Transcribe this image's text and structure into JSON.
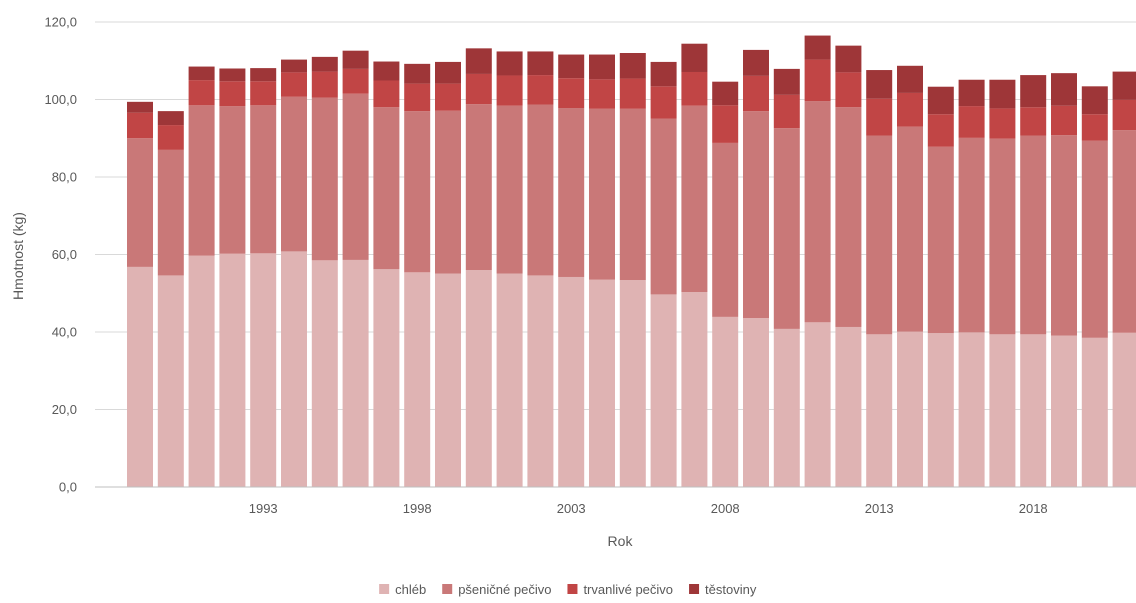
{
  "chart_data": {
    "type": "bar",
    "stacked": true,
    "xlabel": "Rok",
    "ylabel": "Hmotnost (kg)",
    "ylim": [
      0,
      120
    ],
    "yticks": [
      0,
      20,
      40,
      60,
      80,
      100,
      120
    ],
    "ytick_labels": [
      "0,0",
      "20,0",
      "40,0",
      "60,0",
      "80,0",
      "100,0",
      "120,0"
    ],
    "x": [
      1989,
      1990,
      1991,
      1992,
      1993,
      1994,
      1995,
      1996,
      1997,
      1998,
      1999,
      2000,
      2001,
      2002,
      2003,
      2004,
      2005,
      2006,
      2007,
      2008,
      2009,
      2010,
      2011,
      2012,
      2013,
      2014,
      2015,
      2016,
      2017,
      2018,
      2019,
      2020,
      2021
    ],
    "xtick_labels": [
      {
        "year": 1993,
        "label": "1993"
      },
      {
        "year": 1998,
        "label": "1998"
      },
      {
        "year": 2003,
        "label": "2003"
      },
      {
        "year": 2008,
        "label": "2008"
      },
      {
        "year": 2013,
        "label": "2013"
      },
      {
        "year": 2018,
        "label": "2018"
      }
    ],
    "grid": "horizontal",
    "legend_position": "bottom",
    "series": [
      {
        "name": "chléb",
        "color": "#dfb3b3",
        "values": [
          56.8,
          54.6,
          59.7,
          60.2,
          60.3,
          60.8,
          58.5,
          58.6,
          56.2,
          55.4,
          55.1,
          56.0,
          55.1,
          54.6,
          54.2,
          53.5,
          53.4,
          49.7,
          50.3,
          43.9,
          43.6,
          40.8,
          42.5,
          41.3,
          39.4,
          40.1,
          39.7,
          39.9,
          39.4,
          39.4,
          39.1,
          38.5,
          39.8
        ]
      },
      {
        "name": "pšeničné pečivo",
        "color": "#c97878",
        "values": [
          33.2,
          32.4,
          38.8,
          38.1,
          38.2,
          39.9,
          42.0,
          42.9,
          41.8,
          41.6,
          42.0,
          42.8,
          43.3,
          44.1,
          43.6,
          44.1,
          44.2,
          45.4,
          48.1,
          44.9,
          53.4,
          51.8,
          57.1,
          56.7,
          51.3,
          52.9,
          48.1,
          50.2,
          50.5,
          51.3,
          51.7,
          50.9,
          52.3
        ]
      },
      {
        "name": "trvanlivé pečivo",
        "color": "#c14545",
        "values": [
          6.6,
          6.4,
          6.5,
          6.4,
          6.2,
          6.3,
          6.7,
          6.4,
          6.9,
          7.1,
          7.0,
          7.8,
          7.8,
          7.6,
          7.7,
          7.6,
          7.8,
          8.3,
          8.7,
          9.7,
          9.1,
          8.6,
          10.7,
          9.0,
          9.5,
          8.7,
          8.4,
          8.2,
          7.8,
          7.3,
          7.6,
          6.8,
          7.8
        ]
      },
      {
        "name": "těstoviny",
        "color": "#9e3638",
        "values": [
          2.8,
          3.6,
          3.5,
          3.3,
          3.4,
          3.3,
          3.8,
          4.7,
          4.9,
          5.1,
          5.6,
          6.6,
          6.2,
          6.1,
          6.1,
          6.4,
          6.6,
          6.3,
          7.3,
          6.1,
          6.7,
          6.7,
          6.2,
          6.9,
          7.4,
          7.0,
          7.1,
          6.8,
          7.4,
          8.3,
          8.4,
          7.2,
          7.3
        ]
      }
    ]
  }
}
